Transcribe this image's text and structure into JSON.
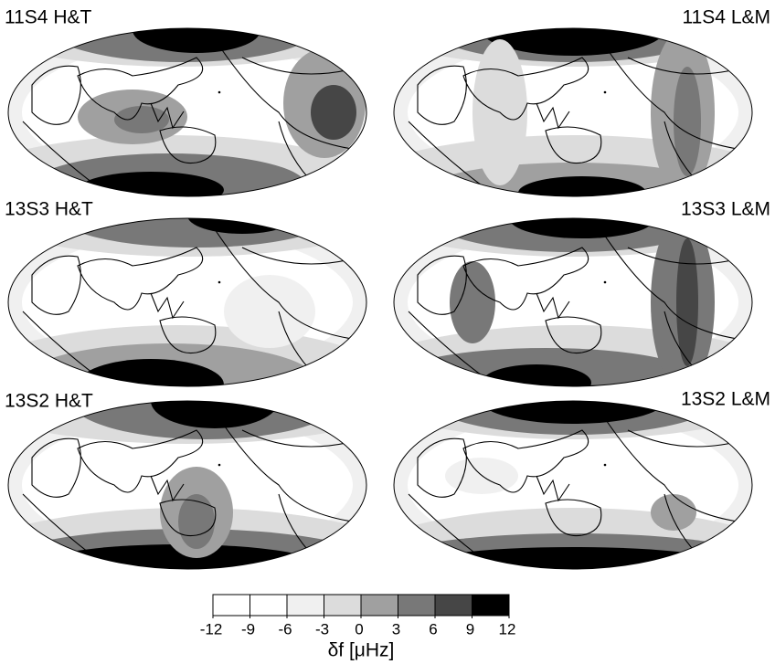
{
  "panels": [
    {
      "label": "11S4 H&T"
    },
    {
      "label": "11S4 L&M"
    },
    {
      "label": "13S3 H&T"
    },
    {
      "label": "13S3 L&M"
    },
    {
      "label": "13S2 H&T"
    },
    {
      "label": "13S2 L&M"
    }
  ],
  "colorbar": {
    "ticks": [
      -12,
      -9,
      -6,
      -3,
      0,
      3,
      6,
      9,
      12
    ],
    "colors": [
      "#ffffff",
      "#ffffff",
      "#f0f0f0",
      "#dcdcdc",
      "#a0a0a0",
      "#787878",
      "#464646",
      "#000000"
    ],
    "label": "δf [μHz]"
  }
}
